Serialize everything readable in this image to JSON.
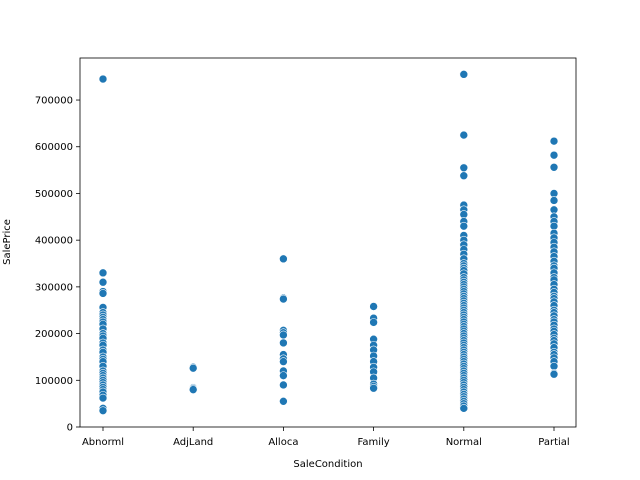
{
  "chart_data": {
    "type": "scatter",
    "title": "",
    "xlabel": "SaleCondition",
    "ylabel": "SalePrice",
    "categories": [
      "Abnorml",
      "AdjLand",
      "Alloca",
      "Family",
      "Normal",
      "Partial"
    ],
    "ylim": [
      0,
      790000
    ],
    "yticks": [
      0,
      100000,
      200000,
      300000,
      400000,
      500000,
      600000,
      700000
    ],
    "ytick_labels": [
      "0",
      "100000",
      "200000",
      "300000",
      "400000",
      "500000",
      "600000",
      "700000"
    ],
    "grid": false,
    "legend": "none",
    "marker_color": "#1f77b4",
    "points": [
      {
        "x": "Abnorml",
        "y": [
          745000,
          330000,
          310000,
          290000,
          286000,
          256000,
          245000,
          240000,
          235000,
          230000,
          225000,
          220000,
          210000,
          200000,
          195000,
          190000,
          180000,
          175000,
          165000,
          160000,
          150000,
          145000,
          140000,
          130000,
          120000,
          115000,
          110000,
          105000,
          100000,
          95000,
          90000,
          85000,
          80000,
          75000,
          68000,
          62000,
          40000,
          35000
        ]
      },
      {
        "x": "AdjLand",
        "y": [
          128000,
          126000,
          84000,
          82000,
          80000
        ]
      },
      {
        "x": "Alloca",
        "y": [
          360000,
          276000,
          274000,
          207000,
          202000,
          197000,
          180000,
          155000,
          146000,
          140000,
          120000,
          110000,
          90000,
          55000
        ]
      },
      {
        "x": "Family",
        "y": [
          258000,
          233000,
          224000,
          188000,
          175000,
          165000,
          152000,
          140000,
          128000,
          118000,
          105000,
          92000,
          87000,
          83000
        ]
      },
      {
        "x": "Normal",
        "y": [
          755000,
          625000,
          555000,
          538000,
          475000,
          465000,
          455000,
          440000,
          430000,
          410000,
          400000,
          390000,
          380000,
          370000,
          360000,
          350000,
          345000,
          340000,
          335000,
          328000,
          320000,
          315000,
          310000,
          305000,
          300000,
          295000,
          290000,
          285000,
          280000,
          275000,
          270000,
          265000,
          260000,
          255000,
          250000,
          245000,
          240000,
          235000,
          230000,
          225000,
          220000,
          215000,
          210000,
          205000,
          200000,
          195000,
          190000,
          185000,
          180000,
          175000,
          170000,
          165000,
          160000,
          155000,
          150000,
          145000,
          140000,
          135000,
          130000,
          125000,
          120000,
          115000,
          110000,
          105000,
          100000,
          95000,
          90000,
          85000,
          80000,
          75000,
          70000,
          65000,
          60000,
          55000,
          50000,
          45000,
          40000
        ]
      },
      {
        "x": "Partial",
        "y": [
          612000,
          582000,
          556000,
          500000,
          485000,
          465000,
          450000,
          440000,
          430000,
          415000,
          405000,
          395000,
          385000,
          375000,
          365000,
          355000,
          345000,
          340000,
          330000,
          320000,
          315000,
          305000,
          295000,
          288000,
          280000,
          275000,
          268000,
          260000,
          250000,
          245000,
          238000,
          230000,
          225000,
          218000,
          210000,
          205000,
          198000,
          190000,
          185000,
          178000,
          170000,
          160000,
          155000,
          148000,
          140000,
          130000,
          115000,
          113000
        ]
      }
    ]
  }
}
